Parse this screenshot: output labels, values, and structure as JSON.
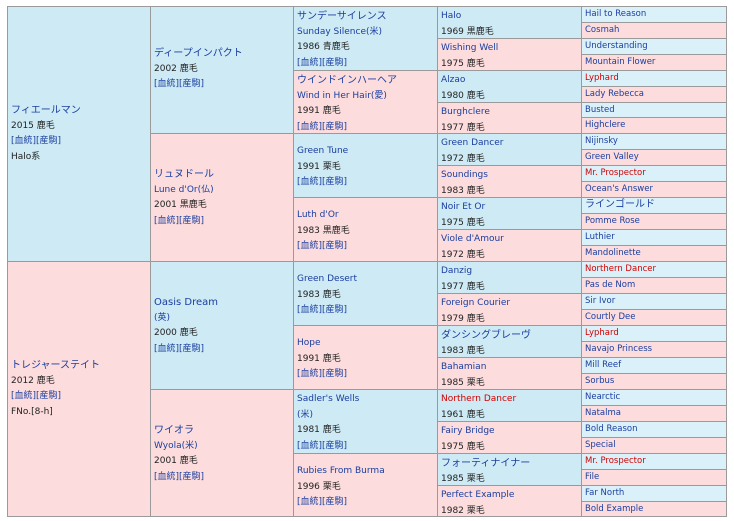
{
  "gen1": {
    "sire": {
      "name": "フィエールマン",
      "year_color": "2015 鹿毛",
      "links": "[血統][産駒]",
      "line": "Halo系"
    },
    "dam": {
      "name": "トレジャーステイト",
      "year_color": "2012 鹿毛",
      "links": "[血統][産駒]",
      "family": "FNo.[8-h]"
    }
  },
  "gen2": [
    {
      "name": "ディープインパクト",
      "year_color": "2002 鹿毛",
      "links": "[血統][産駒]"
    },
    {
      "name": "リュヌドール",
      "origin": "Lune d'Or(仏)",
      "year_color": "2001 黒鹿毛",
      "links": "[血統][産駒]"
    },
    {
      "name": "Oasis Dream",
      "origin": "(英)",
      "year_color": "2000 鹿毛",
      "links": "[血統][産駒]"
    },
    {
      "name": "ワイオラ",
      "origin": "Wyola(米)",
      "year_color": "2001 鹿毛",
      "links": "[血統][産駒]"
    }
  ],
  "gen3": [
    {
      "name": "サンデーサイレンス",
      "origin": "Sunday Silence(米)",
      "year_color": "1986 青鹿毛",
      "links": "[血統][産駒]"
    },
    {
      "name": "ウインドインハーヘア",
      "origin": "Wind in Her Hair(愛)",
      "year_color": "1991 鹿毛",
      "links": "[血統][産駒]"
    },
    {
      "name": "Green Tune",
      "year_color": "1991 栗毛",
      "links": "[血統][産駒]"
    },
    {
      "name": "Luth d'Or",
      "year_color": "1983 黒鹿毛",
      "links": "[血統][産駒]"
    },
    {
      "name": "Green Desert",
      "year_color": "1983 鹿毛",
      "links": "[血統][産駒]"
    },
    {
      "name": "Hope",
      "year_color": "1991 鹿毛",
      "links": "[血統][産駒]"
    },
    {
      "name": "Sadler's Wells",
      "origin": "(米)",
      "year_color": "1981 鹿毛",
      "links": "[血統][産駒]"
    },
    {
      "name": "Rubies From Burma",
      "year_color": "1996 栗毛",
      "links": "[血統][産駒]"
    }
  ],
  "gen4": [
    {
      "name": "Halo",
      "year_color": "1969 黒鹿毛"
    },
    {
      "name": "Wishing Well",
      "year_color": "1975 鹿毛"
    },
    {
      "name": "Alzao",
      "year_color": "1980 鹿毛"
    },
    {
      "name": "Burghclere",
      "year_color": "1977 鹿毛"
    },
    {
      "name": "Green Dancer",
      "year_color": "1972 鹿毛"
    },
    {
      "name": "Soundings",
      "year_color": "1983 鹿毛"
    },
    {
      "name": "Noir Et Or",
      "year_color": "1975 鹿毛"
    },
    {
      "name": "Viole d'Amour",
      "year_color": "1972 鹿毛"
    },
    {
      "name": "Danzig",
      "year_color": "1977 鹿毛"
    },
    {
      "name": "Foreign Courier",
      "year_color": "1979 鹿毛"
    },
    {
      "name": "ダンシングブレーヴ",
      "year_color": "1983 鹿毛"
    },
    {
      "name": "Bahamian",
      "year_color": "1985 栗毛"
    },
    {
      "name": "Northern Dancer",
      "year_color": "1961 鹿毛"
    },
    {
      "name": "Fairy Bridge",
      "year_color": "1975 鹿毛"
    },
    {
      "name": "フォーティナイナー",
      "year_color": "1985 栗毛"
    },
    {
      "name": "Perfect Example",
      "year_color": "1982 栗毛"
    }
  ],
  "gen5": [
    "Hail to Reason",
    "Cosmah",
    "Understanding",
    "Mountain Flower",
    "Lyphard",
    "Lady Rebecca",
    "Busted",
    "Highclere",
    "Nijinsky",
    "Green Valley",
    "Mr. Prospector",
    "Ocean's Answer",
    "ラインゴールド",
    "Pomme Rose",
    "Luthier",
    "Mandolinette",
    "Northern Dancer",
    "Pas de Nom",
    "Sir Ivor",
    "Courtly Dee",
    "Lyphard",
    "Navajo Princess",
    "Mill Reef",
    "Sorbus",
    "Nearctic",
    "Natalma",
    "Bold Reason",
    "Special",
    "Mr. Prospector",
    "File",
    "Far North",
    "Bold Example"
  ],
  "colors": {
    "male_bg": "#cdeaf5",
    "female_bg": "#fcdcdc",
    "border": "#9a9a9a",
    "link_blue": "#1a3ea0",
    "highlight_red": "#d40000"
  }
}
